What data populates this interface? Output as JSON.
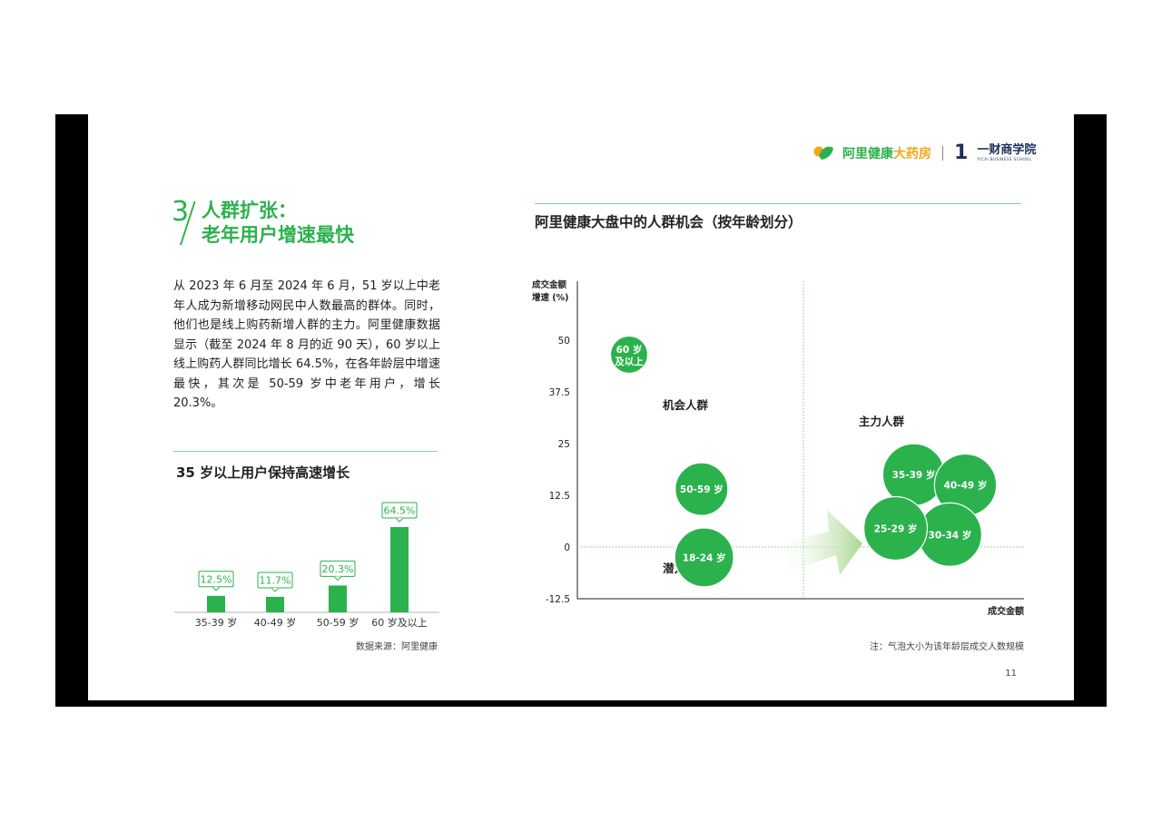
{
  "header": {
    "brand": "阿里健康",
    "brand_accent": "大药房",
    "school_num": "1",
    "school": "一财商学院",
    "school_en": "YICAI BUSINESS SCHOOL"
  },
  "section": {
    "number": "3",
    "title_line1": "人群扩张：",
    "title_line2": "老年用户增速最快"
  },
  "body_text": "从 2023 年 6 月至 2024 年 6 月，51 岁以上中老年人成为新增移动网民中人数最高的群体。同时，他们也是线上购药新增人群的主力。阿里健康数据显示（截至 2024 年 8 月的近 90 天），60 岁以上线上购药人群同比增长 64.5%，在各年龄层中增速最快，其次是 50-59 岁中老年用户，增长 20.3%。",
  "source": "数据来源：阿里健康",
  "note": "注：气泡大小为该年龄层成交人数规模",
  "page_number": "11",
  "colors": {
    "green": "#2bb24c",
    "light_green": "#8bcf9c",
    "orange": "#f2a51a",
    "navy": "#1d2f5a"
  },
  "chart_data": [
    {
      "type": "bar",
      "title": "35 岁以上用户保持高速增长",
      "categories": [
        "35-39 岁",
        "40-49 岁",
        "50-59 岁",
        "60 岁及以上"
      ],
      "values": [
        12.5,
        11.7,
        20.3,
        64.5
      ],
      "data_labels": [
        "12.5%",
        "11.7%",
        "20.3%",
        "64.5%"
      ],
      "ylim": [
        0,
        70
      ]
    },
    {
      "type": "scatter",
      "title": "阿里健康大盘中的人群机会（按年龄划分）",
      "ylabel_line1": "成交金额",
      "ylabel_line2": "增速 (%)",
      "xlabel": "成交金额",
      "yticks": [
        "50",
        "37.5",
        "25",
        "12.5",
        "0",
        "-12.5"
      ],
      "ylim": [
        -12.5,
        50
      ],
      "quadrants": [
        "机会人群",
        "主力人群",
        "潜力人群"
      ],
      "bubbles": [
        {
          "label1": "60 岁",
          "label2": "及以上",
          "x": 1.0,
          "y": 46.5,
          "size": 1
        },
        {
          "label1": "50-59 岁",
          "label2": "",
          "x": 2.4,
          "y": 14.0,
          "size": 2
        },
        {
          "label1": "18-24 岁",
          "label2": "",
          "x": 2.45,
          "y": -2.5,
          "size": 2.4
        },
        {
          "label1": "35-39 岁",
          "label2": "",
          "x": 6.5,
          "y": 17.5,
          "size": 2.6
        },
        {
          "label1": "40-49 岁",
          "label2": "",
          "x": 7.5,
          "y": 15.0,
          "size": 2.6
        },
        {
          "label1": "30-34 岁",
          "label2": "",
          "x": 7.2,
          "y": 3.0,
          "size": 2.7
        },
        {
          "label1": "25-29 岁",
          "label2": "",
          "x": 6.15,
          "y": 4.5,
          "size": 2.7
        }
      ]
    }
  ]
}
